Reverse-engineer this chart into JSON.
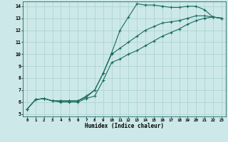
{
  "xlabel": "Humidex (Indice chaleur)",
  "xlim": [
    -0.5,
    23.5
  ],
  "ylim": [
    4.8,
    14.4
  ],
  "xticks": [
    0,
    1,
    2,
    3,
    4,
    5,
    6,
    7,
    8,
    9,
    10,
    11,
    12,
    13,
    14,
    15,
    16,
    17,
    18,
    19,
    20,
    21,
    22,
    23
  ],
  "yticks": [
    5,
    6,
    7,
    8,
    9,
    10,
    11,
    12,
    13,
    14
  ],
  "bg_color": "#cce8e8",
  "line_color": "#1a6b60",
  "grid_color": "#aad0d0",
  "line1_x": [
    0,
    1,
    2,
    3,
    4,
    5,
    6,
    7,
    8,
    9,
    10,
    11,
    12,
    13,
    14,
    15,
    16,
    17,
    18,
    19,
    20,
    21,
    22,
    23
  ],
  "line1_y": [
    5.4,
    6.2,
    6.3,
    6.1,
    6.1,
    6.1,
    6.1,
    6.5,
    7.0,
    8.4,
    10.1,
    12.0,
    13.1,
    14.2,
    14.1,
    14.1,
    14.0,
    13.9,
    13.9,
    14.0,
    14.0,
    13.7,
    13.1,
    13.0
  ],
  "line2_x": [
    0,
    1,
    2,
    3,
    4,
    5,
    6,
    7,
    8,
    9,
    10,
    11,
    12,
    13,
    14,
    15,
    16,
    17,
    18,
    19,
    20,
    21,
    22,
    23
  ],
  "line2_y": [
    5.4,
    6.2,
    6.3,
    6.1,
    6.1,
    6.1,
    6.1,
    6.4,
    7.0,
    8.4,
    10.0,
    10.5,
    11.0,
    11.5,
    12.0,
    12.3,
    12.6,
    12.7,
    12.8,
    13.0,
    13.2,
    13.2,
    13.1,
    13.0
  ],
  "line3_x": [
    0,
    1,
    2,
    3,
    4,
    5,
    6,
    7,
    8,
    9,
    10,
    11,
    12,
    13,
    14,
    15,
    16,
    17,
    18,
    19,
    20,
    21,
    22,
    23
  ],
  "line3_y": [
    5.4,
    6.2,
    6.3,
    6.1,
    6.0,
    6.0,
    6.0,
    6.3,
    6.5,
    7.8,
    9.3,
    9.6,
    10.0,
    10.3,
    10.7,
    11.1,
    11.5,
    11.8,
    12.1,
    12.5,
    12.8,
    13.0,
    13.1,
    13.0
  ]
}
